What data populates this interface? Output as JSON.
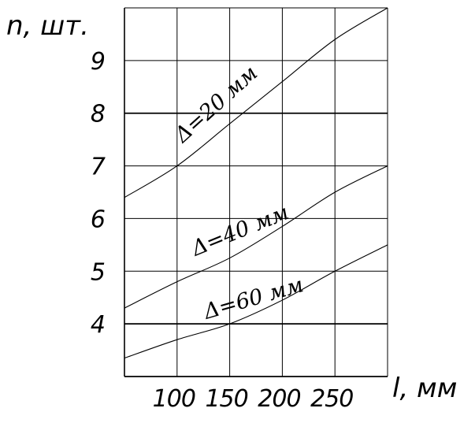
{
  "chart_data": {
    "type": "line",
    "title": "",
    "xlabel": "l, мм",
    "ylabel": "n, шт.",
    "xlim": [
      50,
      300
    ],
    "ylim": [
      3,
      10
    ],
    "xticks": [
      100,
      150,
      200,
      250
    ],
    "xtick_labels": [
      "100",
      "150",
      "200",
      "250"
    ],
    "yticks": [
      4,
      5,
      6,
      7,
      8,
      9
    ],
    "ytick_labels": [
      "4",
      "5",
      "6",
      "7",
      "8",
      "9"
    ],
    "grid": true,
    "legend": "none",
    "series": [
      {
        "name": "Δ=20 мм",
        "x": [
          50,
          100,
          150,
          200,
          250,
          300
        ],
        "y": [
          6.4,
          7.0,
          7.8,
          8.6,
          9.4,
          10.0
        ]
      },
      {
        "name": "Δ=40 мм",
        "x": [
          50,
          100,
          150,
          200,
          250,
          300
        ],
        "y": [
          4.3,
          4.8,
          5.25,
          5.85,
          6.5,
          7.0
        ]
      },
      {
        "name": "Δ=60 мм",
        "x": [
          50,
          100,
          150,
          200,
          250,
          300
        ],
        "y": [
          3.35,
          3.7,
          4.0,
          4.45,
          5.0,
          5.5
        ]
      }
    ]
  }
}
